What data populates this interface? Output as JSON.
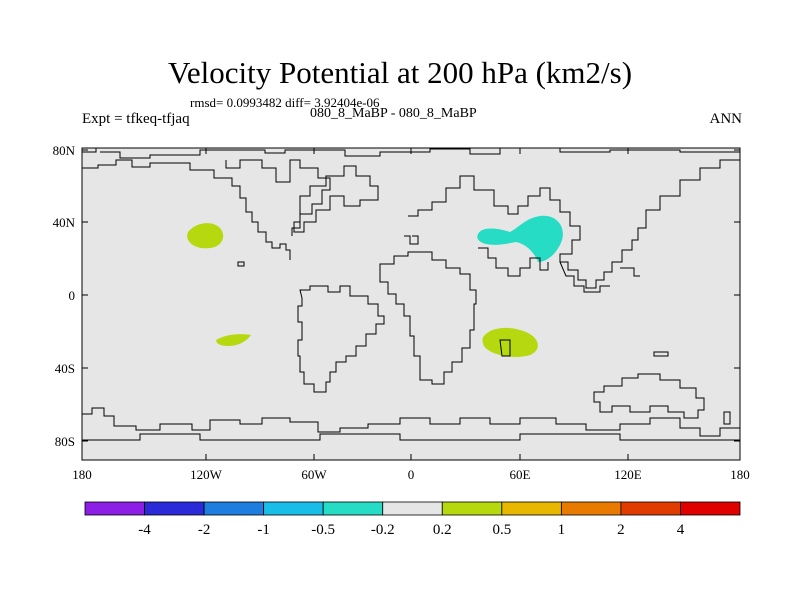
{
  "header": {
    "title": "Velocity Potential at 200 hPa (km2/s)",
    "stats": "rmsd= 0.0993482 diff= 3.92404e-06",
    "experiment": "Expt = tfkeq-tfjaq",
    "case": "080_8_MaBP - 080_8_MaBP",
    "season": "ANN"
  },
  "map": {
    "background_color": "#e6e6e6",
    "coastline_color": "#000000",
    "lon_ticks": [
      "180",
      "120W",
      "60W",
      "0",
      "60E",
      "120E",
      "180"
    ],
    "lat_ticks": [
      "80N",
      "40N",
      "0",
      "40S",
      "80S"
    ],
    "anomalies": [
      {
        "label": "North Pacific positive",
        "level": "0.2 to 0.5",
        "color": "#b5d80f"
      },
      {
        "label": "South Pacific positive",
        "level": "0.2 to 0.5",
        "color": "#b5d80f"
      },
      {
        "label": "Southern Africa positive",
        "level": "0.2 to 0.5",
        "color": "#b5d80f"
      },
      {
        "label": "Middle East negative",
        "level": "-0.5 to -0.2",
        "color": "#27dcc4"
      }
    ]
  },
  "colorbar": {
    "colors": [
      "#8c1ee6",
      "#2a2ad8",
      "#1e7ee0",
      "#18bde8",
      "#27dcc4",
      "#e6e6e6",
      "#b5d80f",
      "#e8b800",
      "#e87a00",
      "#e03c00",
      "#e00000"
    ],
    "labels": [
      "-4",
      "-2",
      "-1",
      "-0.5",
      "-0.2",
      "0.2",
      "0.5",
      "1",
      "2",
      "4"
    ]
  }
}
